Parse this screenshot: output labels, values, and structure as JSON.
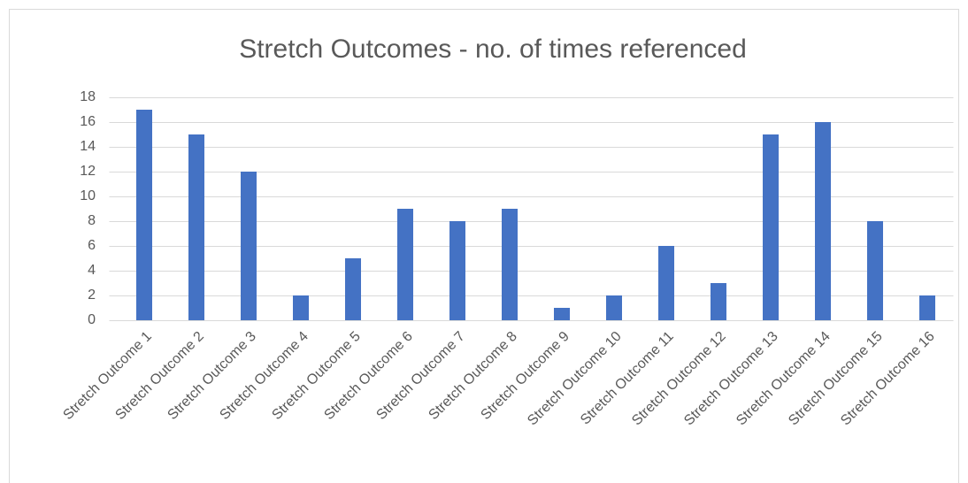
{
  "chart_data": {
    "type": "bar",
    "title": "Stretch Outcomes - no. of times referenced",
    "categories": [
      "Stretch Outcome 1",
      "Stretch Outcome 2",
      "Stretch Outcome 3",
      "Stretch Outcome 4",
      "Stretch Outcome 5",
      "Stretch Outcome 6",
      "Stretch Outcome 7",
      "Stretch Outcome 8",
      "Stretch Outcome 9",
      "Stretch Outcome 10",
      "Stretch Outcome 11",
      "Stretch Outcome 12",
      "Stretch Outcome 13",
      "Stretch Outcome 14",
      "Stretch Outcome 15",
      "Stretch Outcome 16"
    ],
    "values": [
      17,
      15,
      12,
      2,
      5,
      9,
      8,
      9,
      1,
      2,
      6,
      3,
      15,
      16,
      8,
      2
    ],
    "color": "#4472c4",
    "ylim": [
      0,
      18
    ],
    "yticks": [
      0,
      2,
      4,
      6,
      8,
      10,
      12,
      14,
      16,
      18
    ],
    "grid": true
  }
}
